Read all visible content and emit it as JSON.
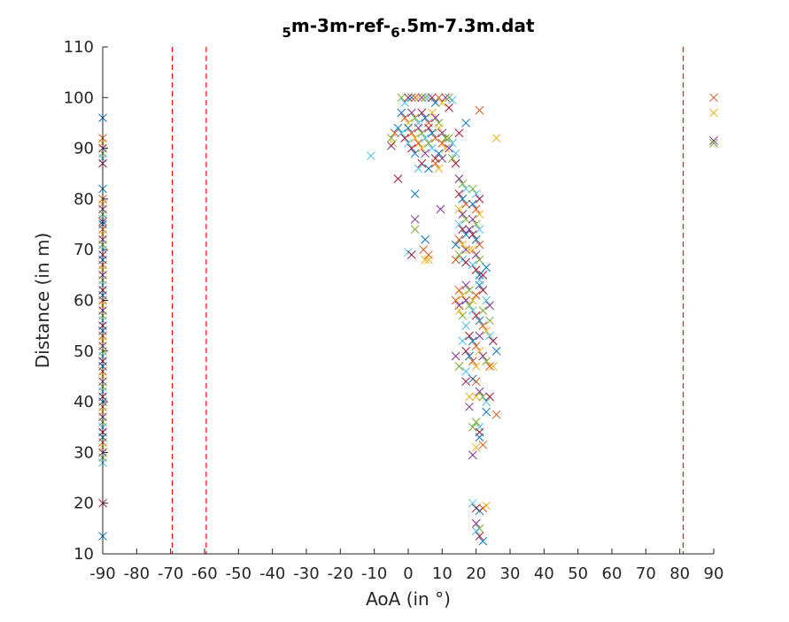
{
  "chart_data": {
    "type": "scatter",
    "title": {
      "parts": [
        {
          "text": "5",
          "sub": true
        },
        {
          "text": "m-3m-ref-",
          "sub": false
        },
        {
          "text": "6",
          "sub": true
        },
        {
          "text": ".5m-7.3m.dat",
          "sub": false
        }
      ]
    },
    "xlabel": "AoA (in °)",
    "ylabel": "Distance (in m)",
    "xlim": [
      -90,
      90
    ],
    "ylim": [
      10,
      110
    ],
    "xticks": [
      -90,
      -80,
      -70,
      -60,
      -50,
      -40,
      -30,
      -20,
      -10,
      0,
      10,
      20,
      30,
      40,
      50,
      60,
      70,
      80,
      90
    ],
    "yticks": [
      10,
      20,
      30,
      40,
      50,
      60,
      70,
      80,
      90,
      100,
      110
    ],
    "grid": false,
    "marker": "x",
    "reference_lines": {
      "orientation": "vertical",
      "style": "dashed",
      "color": "#ff0000",
      "x": [
        -69.5,
        -59.5,
        81
      ]
    },
    "series_colors": [
      "#0072bd",
      "#d95319",
      "#edb120",
      "#7e2f8e",
      "#77ac30",
      "#4dbeee",
      "#a2142f"
    ],
    "points": [
      [
        -90,
        96
      ],
      [
        -90,
        92
      ],
      [
        -90,
        91
      ],
      [
        -90,
        90
      ],
      [
        -90,
        89
      ],
      [
        -90,
        88
      ],
      [
        -90,
        87
      ],
      [
        -90,
        82
      ],
      [
        -90,
        80
      ],
      [
        -90,
        79
      ],
      [
        -90,
        78
      ],
      [
        -90,
        77
      ],
      [
        -90,
        76
      ],
      [
        -90,
        75.5
      ],
      [
        -90,
        75
      ],
      [
        -90,
        74
      ],
      [
        -90,
        73
      ],
      [
        -90,
        72
      ],
      [
        -90,
        71
      ],
      [
        -90,
        70
      ],
      [
        -90,
        69
      ],
      [
        -90,
        68
      ],
      [
        -90,
        67
      ],
      [
        -90,
        66
      ],
      [
        -90,
        65
      ],
      [
        -90,
        64
      ],
      [
        -90,
        63
      ],
      [
        -90,
        62
      ],
      [
        -90,
        61
      ],
      [
        -90,
        60
      ],
      [
        -90,
        59
      ],
      [
        -90,
        58
      ],
      [
        -90,
        57
      ],
      [
        -90,
        56
      ],
      [
        -90,
        55
      ],
      [
        -90,
        54
      ],
      [
        -90,
        53
      ],
      [
        -90,
        52
      ],
      [
        -90,
        51
      ],
      [
        -90,
        50
      ],
      [
        -90,
        49
      ],
      [
        -90,
        48
      ],
      [
        -90,
        47
      ],
      [
        -90,
        46
      ],
      [
        -90,
        45
      ],
      [
        -90,
        44
      ],
      [
        -90,
        43
      ],
      [
        -90,
        42
      ],
      [
        -90,
        41
      ],
      [
        -90,
        40
      ],
      [
        -90,
        39
      ],
      [
        -90,
        38
      ],
      [
        -90,
        37
      ],
      [
        -90,
        36
      ],
      [
        -90,
        35
      ],
      [
        -90,
        34
      ],
      [
        -90,
        33
      ],
      [
        -90,
        32
      ],
      [
        -90,
        31
      ],
      [
        -90,
        30
      ],
      [
        -90,
        29
      ],
      [
        -90,
        28
      ],
      [
        -90,
        20
      ],
      [
        -90,
        13.5
      ],
      [
        90,
        100
      ],
      [
        90,
        97
      ],
      [
        90,
        91.5
      ],
      [
        90,
        91
      ],
      [
        -11,
        88.5
      ],
      [
        -3,
        84
      ],
      [
        2,
        81
      ],
      [
        4.5,
        70
      ],
      [
        5,
        68
      ],
      [
        2,
        76
      ],
      [
        2,
        74
      ],
      [
        0,
        69.5
      ],
      [
        1,
        69
      ],
      [
        5,
        72
      ],
      [
        6,
        69
      ],
      [
        6,
        68
      ],
      [
        9.5,
        78
      ],
      [
        -2,
        100
      ],
      [
        -1,
        99
      ],
      [
        0,
        100
      ],
      [
        1,
        100
      ],
      [
        2,
        100
      ],
      [
        3,
        100
      ],
      [
        4,
        100
      ],
      [
        5,
        100
      ],
      [
        6,
        100
      ],
      [
        7,
        100
      ],
      [
        8,
        99
      ],
      [
        9,
        100
      ],
      [
        10,
        99
      ],
      [
        11,
        100
      ],
      [
        12,
        100
      ],
      [
        13,
        99.5
      ],
      [
        12,
        98
      ],
      [
        -2,
        97
      ],
      [
        -1,
        96
      ],
      [
        0,
        95
      ],
      [
        1,
        97
      ],
      [
        2,
        96
      ],
      [
        3,
        95
      ],
      [
        4,
        97
      ],
      [
        5,
        96
      ],
      [
        6,
        95
      ],
      [
        7,
        97
      ],
      [
        8,
        96
      ],
      [
        9,
        95
      ],
      [
        -2,
        93
      ],
      [
        -1,
        92
      ],
      [
        0,
        94
      ],
      [
        1,
        93
      ],
      [
        2,
        92
      ],
      [
        3,
        94
      ],
      [
        4,
        93
      ],
      [
        5,
        92
      ],
      [
        6,
        94
      ],
      [
        7,
        93
      ],
      [
        8,
        92
      ],
      [
        9,
        94
      ],
      [
        10,
        93
      ],
      [
        11,
        92
      ],
      [
        0,
        91
      ],
      [
        1,
        90
      ],
      [
        2,
        89
      ],
      [
        3,
        91
      ],
      [
        4,
        90
      ],
      [
        5,
        89
      ],
      [
        6,
        91
      ],
      [
        7,
        90
      ],
      [
        8,
        88
      ],
      [
        9,
        89
      ],
      [
        10,
        91
      ],
      [
        11,
        90
      ],
      [
        12,
        90
      ],
      [
        13,
        88
      ],
      [
        14,
        89
      ],
      [
        15,
        93
      ],
      [
        -3,
        94
      ],
      [
        -4,
        93
      ],
      [
        -4.5,
        91
      ],
      [
        -5,
        90.5
      ],
      [
        -5,
        92
      ],
      [
        3,
        86
      ],
      [
        4,
        87
      ],
      [
        6,
        86
      ],
      [
        8,
        87
      ],
      [
        9,
        86
      ],
      [
        10,
        88
      ],
      [
        12,
        92
      ],
      [
        13,
        91
      ],
      [
        14,
        87
      ],
      [
        17,
        95
      ],
      [
        21,
        97.5
      ],
      [
        26,
        92
      ],
      [
        15,
        84
      ],
      [
        16,
        83
      ],
      [
        17,
        82
      ],
      [
        15,
        81
      ],
      [
        16,
        80
      ],
      [
        17,
        79
      ],
      [
        15,
        78
      ],
      [
        16,
        77
      ],
      [
        17,
        76
      ],
      [
        15,
        75
      ],
      [
        16,
        74
      ],
      [
        17,
        73
      ],
      [
        15,
        72
      ],
      [
        16,
        71
      ],
      [
        17,
        70
      ],
      [
        15,
        69
      ],
      [
        16,
        68
      ],
      [
        17,
        67.5
      ],
      [
        14,
        71
      ],
      [
        14,
        68
      ],
      [
        18,
        70
      ],
      [
        18,
        74
      ],
      [
        19,
        82
      ],
      [
        20,
        81
      ],
      [
        21,
        80
      ],
      [
        19,
        79
      ],
      [
        20,
        78
      ],
      [
        21,
        77
      ],
      [
        19,
        76
      ],
      [
        20,
        75
      ],
      [
        21,
        74
      ],
      [
        19,
        73
      ],
      [
        20,
        72
      ],
      [
        21,
        71
      ],
      [
        19,
        70
      ],
      [
        20,
        69
      ],
      [
        21,
        68
      ],
      [
        19,
        67
      ],
      [
        20,
        66
      ],
      [
        21,
        65
      ],
      [
        15,
        62
      ],
      [
        16,
        61
      ],
      [
        17,
        60
      ],
      [
        18,
        59
      ],
      [
        19,
        58
      ],
      [
        20,
        57
      ],
      [
        21,
        56
      ],
      [
        22,
        55
      ],
      [
        23,
        54
      ],
      [
        15,
        59
      ],
      [
        16,
        57
      ],
      [
        17,
        55
      ],
      [
        18,
        53
      ],
      [
        19,
        52
      ],
      [
        20,
        51
      ],
      [
        21,
        50
      ],
      [
        22,
        49
      ],
      [
        23,
        48
      ],
      [
        16,
        52
      ],
      [
        17,
        50
      ],
      [
        18,
        49
      ],
      [
        19,
        48
      ],
      [
        20,
        47
      ],
      [
        21,
        53
      ],
      [
        22,
        58
      ],
      [
        23,
        60
      ],
      [
        22,
        62
      ],
      [
        21,
        63
      ],
      [
        20,
        61
      ],
      [
        19,
        60
      ],
      [
        17,
        63
      ],
      [
        18,
        62
      ],
      [
        21,
        64
      ],
      [
        22,
        65
      ],
      [
        23,
        66.5
      ],
      [
        14,
        60
      ],
      [
        15,
        58
      ],
      [
        24,
        59
      ],
      [
        24,
        56
      ],
      [
        24,
        53
      ],
      [
        25,
        52
      ],
      [
        26,
        50
      ],
      [
        24,
        47
      ],
      [
        25,
        47
      ],
      [
        14,
        49
      ],
      [
        15,
        47
      ],
      [
        17,
        46
      ],
      [
        17,
        44
      ],
      [
        19,
        44.5
      ],
      [
        20,
        44
      ],
      [
        20,
        41
      ],
      [
        21,
        42
      ],
      [
        22,
        41
      ],
      [
        23,
        40
      ],
      [
        24,
        41
      ],
      [
        23,
        38
      ],
      [
        26,
        37.5
      ],
      [
        18,
        41
      ],
      [
        18,
        39
      ],
      [
        20,
        36
      ],
      [
        21,
        35
      ],
      [
        21,
        34
      ],
      [
        21,
        33
      ],
      [
        22,
        31.5
      ],
      [
        20,
        31
      ],
      [
        19,
        29.5
      ],
      [
        19,
        35
      ],
      [
        19,
        20
      ],
      [
        20,
        19
      ],
      [
        21,
        18.5
      ],
      [
        22,
        19
      ],
      [
        23,
        19.5
      ],
      [
        20,
        16
      ],
      [
        21,
        15
      ],
      [
        20,
        14.5
      ],
      [
        21,
        13.5
      ],
      [
        22,
        12.5
      ]
    ]
  }
}
